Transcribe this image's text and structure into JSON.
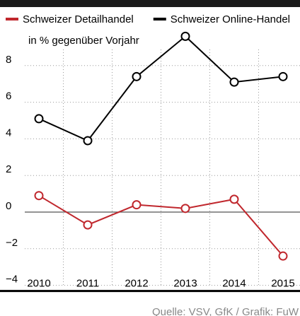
{
  "chart_data": {
    "type": "line",
    "y_label": "in % gegenüber Vorjahr",
    "source": "Quelle: VSV, GfK / Grafik: FuW",
    "categories": [
      "2010",
      "2011",
      "2012",
      "2013",
      "2014",
      "2015"
    ],
    "series": [
      {
        "name": "Schweizer Detailhandel",
        "color": "#c0272d",
        "values": [
          0.9,
          -0.7,
          0.4,
          0.2,
          0.7,
          -2.4
        ]
      },
      {
        "name": "Schweizer Online-Handel",
        "color": "#000000",
        "values": [
          5.1,
          3.9,
          7.4,
          9.6,
          7.1,
          7.4
        ]
      }
    ],
    "ylim": [
      -4,
      10
    ],
    "yticks": [
      {
        "value": -4,
        "label": "−4"
      },
      {
        "value": -2,
        "label": "−2"
      },
      0,
      2,
      4,
      6,
      8
    ],
    "grid": true
  }
}
